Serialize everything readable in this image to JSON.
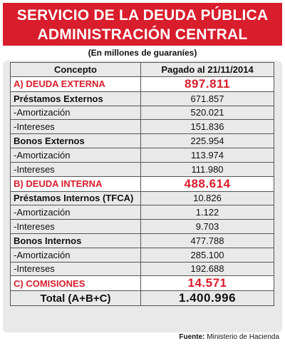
{
  "title": {
    "line1": "SERVICIO DE LA DEUDA PÚBLICA",
    "line2": "ADMINISTRACIÓN CENTRAL"
  },
  "subtitle": "(En millones de guaraníes)",
  "table": {
    "headers": [
      "Concepto",
      "Pagado al 21/11/2014"
    ],
    "rows": [
      {
        "concepto": "A) DEUDA EXTERNA",
        "pagado": "897.811",
        "kind": "section"
      },
      {
        "concepto": "Préstamos Externos",
        "pagado": "671.857",
        "kind": "group"
      },
      {
        "concepto": "-Amortización",
        "pagado": "520.021",
        "kind": "item"
      },
      {
        "concepto": "-Intereses",
        "pagado": "151.836",
        "kind": "item"
      },
      {
        "concepto": "Bonos Externos",
        "pagado": "225.954",
        "kind": "group"
      },
      {
        "concepto": "-Amortización",
        "pagado": "113.974",
        "kind": "item"
      },
      {
        "concepto": "-Intereses",
        "pagado": "111.980",
        "kind": "item"
      },
      {
        "concepto": "B) DEUDA INTERNA",
        "pagado": "488.614",
        "kind": "section"
      },
      {
        "concepto": "Préstamos Internos (TFCA)",
        "pagado": "10.826",
        "kind": "group"
      },
      {
        "concepto": "-Amortización",
        "pagado": "1.122",
        "kind": "item"
      },
      {
        "concepto": "-Intereses",
        "pagado": "9.703",
        "kind": "item"
      },
      {
        "concepto": "Bonos Internos",
        "pagado": "477.788",
        "kind": "group"
      },
      {
        "concepto": "-Amortización",
        "pagado": "285.100",
        "kind": "item"
      },
      {
        "concepto": "-Intereses",
        "pagado": "192.688",
        "kind": "item"
      },
      {
        "concepto": "C) COMISIONES",
        "pagado": "14.571",
        "kind": "section"
      },
      {
        "concepto": "Total (A+B+C)",
        "pagado": "1.400.996",
        "kind": "total"
      }
    ]
  },
  "source": {
    "label": "Fuente:",
    "text": "Ministerio de Hacienda"
  },
  "colors": {
    "accent": "#d81d2c",
    "panel": "#e9e9e9"
  }
}
